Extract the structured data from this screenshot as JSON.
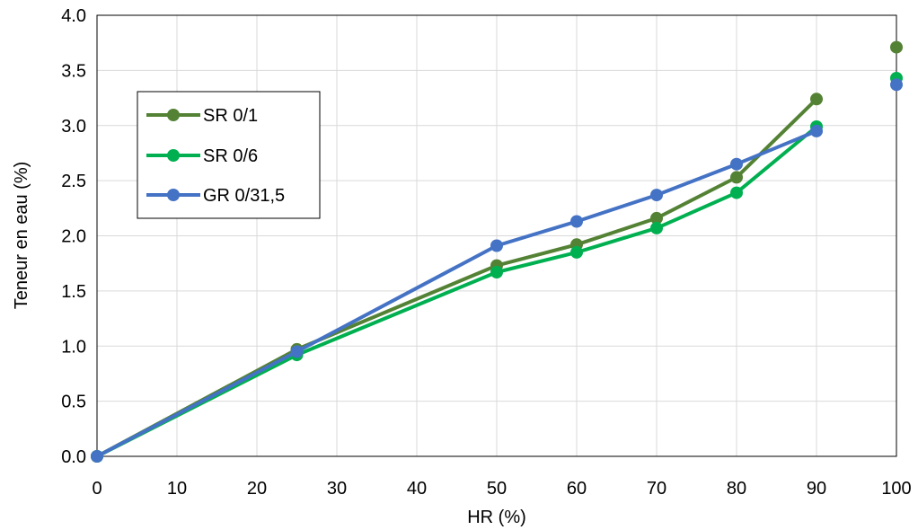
{
  "chart_data": {
    "type": "line",
    "title": "",
    "xlabel": "HR (%)",
    "ylabel": "Teneur en eau (%)",
    "xlim": [
      0,
      100
    ],
    "ylim": [
      0.0,
      4.0
    ],
    "x_ticks": [
      "0",
      "10",
      "20",
      "30",
      "40",
      "50",
      "60",
      "70",
      "80",
      "90",
      "100"
    ],
    "y_ticks": [
      "0.0",
      "0.5",
      "1.0",
      "1.5",
      "2.0",
      "2.5",
      "3.0",
      "3.5",
      "4.0"
    ],
    "grid": true,
    "legend_position": "top-left",
    "series": [
      {
        "name": "SR 0/1",
        "color": "#548235",
        "points": [
          [
            0,
            0.0
          ],
          [
            25,
            0.97
          ],
          [
            50,
            1.73
          ],
          [
            60,
            1.92
          ],
          [
            70,
            2.16
          ],
          [
            80,
            2.53
          ],
          [
            90,
            3.24
          ]
        ],
        "extra_points": [
          [
            100,
            3.71
          ]
        ]
      },
      {
        "name": "SR 0/6",
        "color": "#00B050",
        "points": [
          [
            0,
            0.0
          ],
          [
            25,
            0.92
          ],
          [
            50,
            1.67
          ],
          [
            60,
            1.85
          ],
          [
            70,
            2.07
          ],
          [
            80,
            2.39
          ],
          [
            90,
            2.99
          ]
        ],
        "extra_points": [
          [
            100,
            3.43
          ]
        ]
      },
      {
        "name": "GR 0/31,5",
        "color": "#4472C4",
        "points": [
          [
            0,
            0.0
          ],
          [
            25,
            0.95
          ],
          [
            50,
            1.91
          ],
          [
            60,
            2.13
          ],
          [
            70,
            2.37
          ],
          [
            80,
            2.65
          ],
          [
            90,
            2.95
          ]
        ],
        "extra_points": [
          [
            100,
            3.37
          ]
        ]
      }
    ]
  }
}
